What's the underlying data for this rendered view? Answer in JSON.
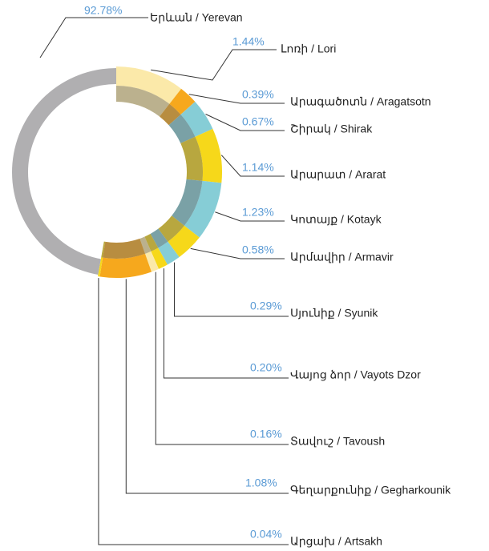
{
  "chart_data": {
    "type": "donut",
    "categories": [
      "Երևան / Yerevan",
      "Լոռի / Lori",
      "Արագածոտն / Aragatsotn",
      "Շիրակ / Shirak",
      "Արարատ / Ararat",
      "Կոտայք / Kotayk",
      "Արմավիր / Armavir",
      "Սյունիք / Syunik",
      "Վայոց ձոր / Vayots Dzor",
      "Տավուշ / Tavoush",
      "Գեղարքունիք / Gegharkounik",
      "Արցախ / Artsakh"
    ],
    "values": [
      92.78,
      1.44,
      0.39,
      0.67,
      1.14,
      1.23,
      0.58,
      0.29,
      0.2,
      0.16,
      1.08,
      0.04
    ],
    "value_labels": [
      "92.78%",
      "1.44%",
      "0.39%",
      "0.67%",
      "1.14%",
      "1.23%",
      "0.58%",
      "0.29%",
      "0.20%",
      "0.16%",
      "1.08%",
      "0.04%"
    ],
    "colors": [
      "#b0afb1",
      "#fbe9a9",
      "#f6a81d",
      "#86cdd6",
      "#f6d81a",
      "#86cdd6",
      "#f6d81a",
      "#86cdd6",
      "#f6d81a",
      "#fbe9a9",
      "#f6a81d",
      "#f6d81a"
    ]
  }
}
